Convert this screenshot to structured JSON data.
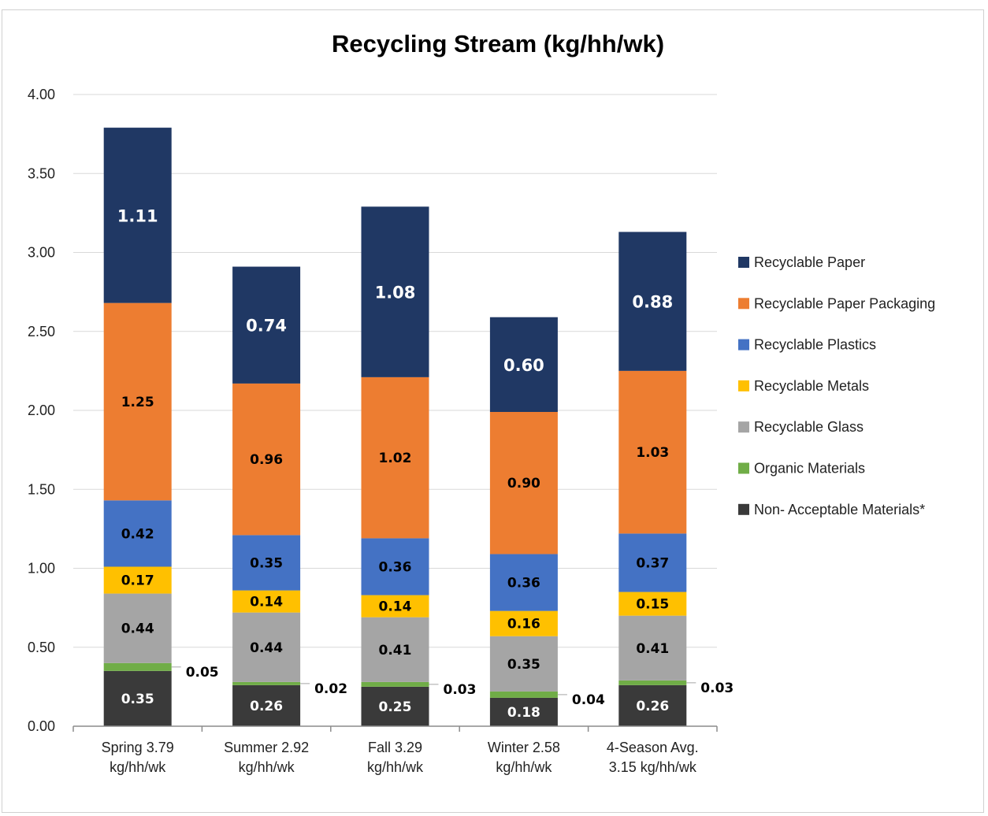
{
  "caption_fragment": "",
  "chart_data": {
    "type": "bar",
    "stacked": true,
    "title": "Recycling Stream (kg/hh/wk)",
    "xlabel": "",
    "ylabel": "",
    "ylim": [
      0,
      4
    ],
    "yticks": [
      "0.00",
      "0.50",
      "1.00",
      "1.50",
      "2.00",
      "2.50",
      "3.00",
      "3.50",
      "4.00"
    ],
    "grid": true,
    "legend_position": "right",
    "categories": [
      [
        "Spring 3.79",
        "kg/hh/wk"
      ],
      [
        "Summer 2.92",
        "kg/hh/wk"
      ],
      [
        "Fall 3.29",
        "kg/hh/wk"
      ],
      [
        "Winter 2.58",
        "kg/hh/wk"
      ],
      [
        "4-Season Avg.",
        "3.15 kg/hh/wk"
      ]
    ],
    "series": [
      {
        "name": "Non- Acceptable Materials*",
        "color": "#3a3a3a",
        "label_color": "#ffffff",
        "values": [
          0.35,
          0.26,
          0.25,
          0.18,
          0.26
        ],
        "labels": [
          "0.35",
          "0.26",
          "0.25",
          "0.18",
          "0.26"
        ]
      },
      {
        "name": "Organic Materials",
        "color": "#70ad47",
        "label_color": "#000000",
        "outside": true,
        "values": [
          0.05,
          0.02,
          0.03,
          0.04,
          0.03
        ],
        "labels": [
          "0.05",
          "0.02",
          "0.03",
          "0.04",
          "0.03"
        ]
      },
      {
        "name": "Recyclable Glass",
        "color": "#a5a5a5",
        "label_color": "#000000",
        "values": [
          0.44,
          0.44,
          0.41,
          0.35,
          0.41
        ],
        "labels": [
          "0.44",
          "0.44",
          "0.41",
          "0.35",
          "0.41"
        ]
      },
      {
        "name": "Recyclable Metals",
        "color": "#ffc000",
        "label_color": "#000000",
        "values": [
          0.17,
          0.14,
          0.14,
          0.16,
          0.15
        ],
        "labels": [
          "0.17",
          "0.14",
          "0.14",
          "0.16",
          "0.15"
        ]
      },
      {
        "name": "Recyclable Plastics",
        "color": "#4472c4",
        "label_color": "#000000",
        "values": [
          0.42,
          0.35,
          0.36,
          0.36,
          0.37
        ],
        "labels": [
          "0.42",
          "0.35",
          "0.36",
          "0.36",
          "0.37"
        ]
      },
      {
        "name": "Recyclable Paper Packaging",
        "color": "#ed7d31",
        "label_color": "#000000",
        "values": [
          1.25,
          0.96,
          1.02,
          0.9,
          1.03
        ],
        "labels": [
          "1.25",
          "0.96",
          "1.02",
          "0.90",
          "1.03"
        ]
      },
      {
        "name": "Recyclable Paper",
        "color": "#203864",
        "label_color": "#ffffff",
        "big": true,
        "values": [
          1.11,
          0.74,
          1.08,
          0.6,
          0.88
        ],
        "labels": [
          "1.11",
          "0.74",
          "1.08",
          "0.60",
          "0.88"
        ]
      }
    ],
    "legend_order": [
      "Recyclable Paper",
      "Recyclable Paper Packaging",
      "Recyclable Plastics",
      "Recyclable Metals",
      "Recyclable Glass",
      "Organic Materials",
      "Non- Acceptable Materials*"
    ]
  }
}
